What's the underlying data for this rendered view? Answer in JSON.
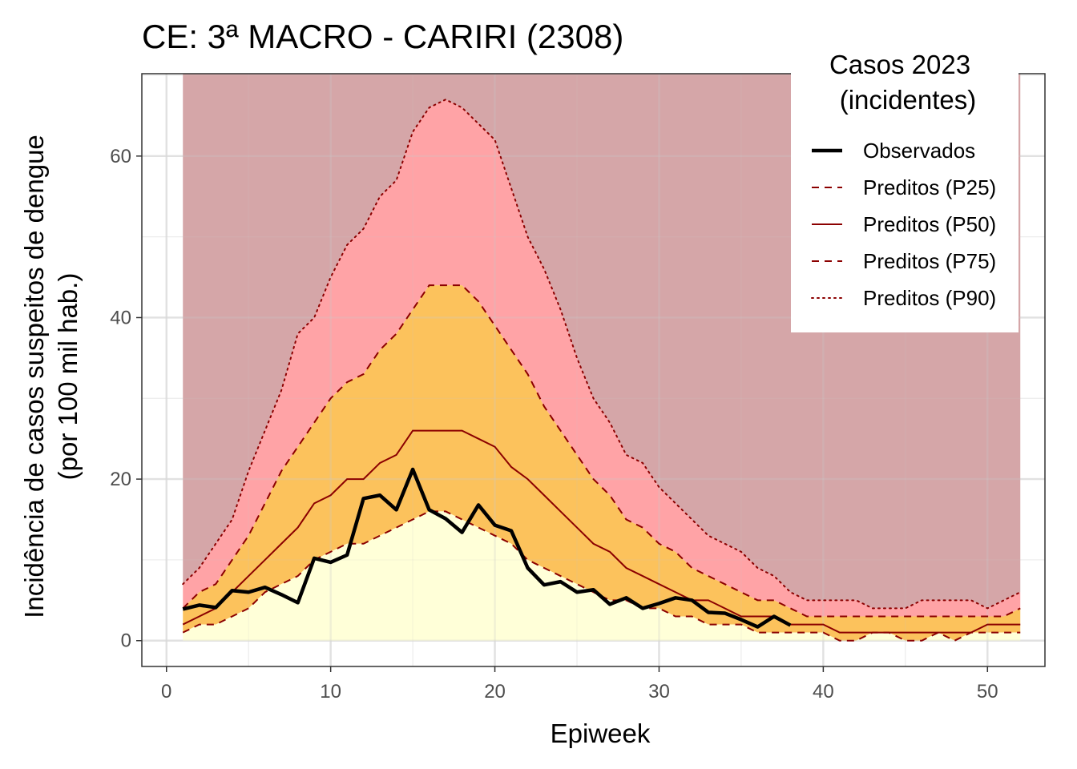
{
  "chart_data": {
    "type": "area",
    "title": "CE: 3ª MACRO - CARIRI (2308)",
    "xlabel": "Epiweek",
    "ylabel_line1": "Incidência de casos suspeitos de dengue",
    "ylabel_line2": "(por 100 mil hab.)",
    "xlim": [
      -1.5,
      53.5
    ],
    "ylim": [
      -3.2,
      70.2
    ],
    "x_ticks": [
      0,
      10,
      20,
      30,
      40,
      50
    ],
    "y_ticks": [
      0,
      20,
      40,
      60
    ],
    "grid": true,
    "legend_position": "top-right",
    "legend": {
      "title_line1": "Casos 2023",
      "title_line2": "(incidentes)",
      "entries": [
        "Observados",
        "Preditos (P25)",
        "Preditos (P50)",
        "Preditos (P75)",
        "Preditos (P90)"
      ]
    },
    "colors": {
      "band_above_p90": "#d5a6a8",
      "band_p75_p90": "#ffa3a6",
      "band_p25_p75": "#fcc25c",
      "band_below_p25": "#ffffd8",
      "predicted_line": "#8b0000",
      "observed_line": "#000000"
    },
    "epiweeks": [
      1,
      2,
      3,
      4,
      5,
      6,
      7,
      8,
      9,
      10,
      11,
      12,
      13,
      14,
      15,
      16,
      17,
      18,
      19,
      20,
      21,
      22,
      23,
      24,
      25,
      26,
      27,
      28,
      29,
      30,
      31,
      32,
      33,
      34,
      35,
      36,
      37,
      38,
      39,
      40,
      41,
      42,
      43,
      44,
      45,
      46,
      47,
      48,
      49,
      50,
      51,
      52
    ],
    "band_top": 70.2,
    "series": [
      {
        "name": "Preditos (P25)",
        "values": [
          1,
          2,
          2,
          3,
          4,
          6,
          7,
          8,
          10,
          11,
          12,
          12,
          13,
          14,
          15,
          16,
          16,
          15,
          14,
          13,
          12,
          10,
          9,
          8,
          7,
          6,
          5,
          5,
          4,
          4,
          3,
          3,
          2,
          2,
          2,
          1,
          1,
          1,
          1,
          1,
          0,
          0,
          1,
          1,
          0,
          0,
          1,
          0,
          1,
          1,
          1,
          1
        ]
      },
      {
        "name": "Preditos (P50)",
        "values": [
          2,
          3,
          4,
          6,
          8,
          10,
          12,
          14,
          17,
          18,
          20,
          20,
          22,
          23,
          26,
          26,
          26,
          26,
          25,
          24,
          21.5,
          20,
          18,
          16,
          14,
          12,
          11,
          9,
          8,
          7,
          6,
          5,
          5,
          4,
          3,
          3,
          3,
          2,
          2,
          2,
          1,
          1,
          1,
          1,
          1,
          1,
          1,
          1,
          1,
          2,
          2,
          2
        ]
      },
      {
        "name": "Preditos (P75)",
        "values": [
          4,
          6,
          7,
          10,
          13,
          17,
          21,
          24,
          27,
          30,
          32,
          33,
          36,
          38,
          41,
          44,
          44,
          44,
          42,
          39,
          36,
          33,
          29,
          26,
          23,
          20,
          18,
          15,
          14,
          12,
          11,
          9,
          8,
          7,
          6,
          5,
          5,
          4,
          3,
          3,
          3,
          3,
          3,
          3,
          3,
          3,
          3,
          3,
          3,
          3,
          3,
          4
        ]
      },
      {
        "name": "Preditos (P90)",
        "values": [
          7,
          9,
          12,
          15,
          21,
          26,
          31,
          38,
          40,
          45,
          49,
          51,
          55,
          57,
          63,
          66,
          67,
          66,
          64,
          62,
          56,
          50,
          46,
          41,
          35,
          30,
          27,
          23,
          22,
          19,
          17,
          15,
          13,
          12,
          11,
          9,
          8,
          6,
          5,
          5,
          5,
          5,
          4,
          4,
          4,
          5,
          5,
          5,
          5,
          4,
          5,
          6
        ]
      },
      {
        "name": "Observados",
        "x": [
          1,
          2,
          3,
          4,
          5,
          6,
          7,
          8,
          9,
          10,
          11,
          12,
          13,
          14,
          15,
          16,
          17,
          18,
          19,
          20,
          21,
          22,
          23,
          24,
          25,
          26,
          27,
          28,
          29,
          30,
          31,
          32,
          33,
          34,
          35,
          36,
          37,
          38
        ],
        "values": [
          3.9,
          4.4,
          4.1,
          6.2,
          6.0,
          6.6,
          5.7,
          4.7,
          10.2,
          9.7,
          10.6,
          17.6,
          18.0,
          16.2,
          21.2,
          16.2,
          15.1,
          13.4,
          16.8,
          14.3,
          13.6,
          9.0,
          6.9,
          7.3,
          6.0,
          6.3,
          4.5,
          5.3,
          4.0,
          4.6,
          5.3,
          5.0,
          3.5,
          3.4,
          2.6,
          1.7,
          3.0,
          1.9
        ]
      }
    ]
  }
}
